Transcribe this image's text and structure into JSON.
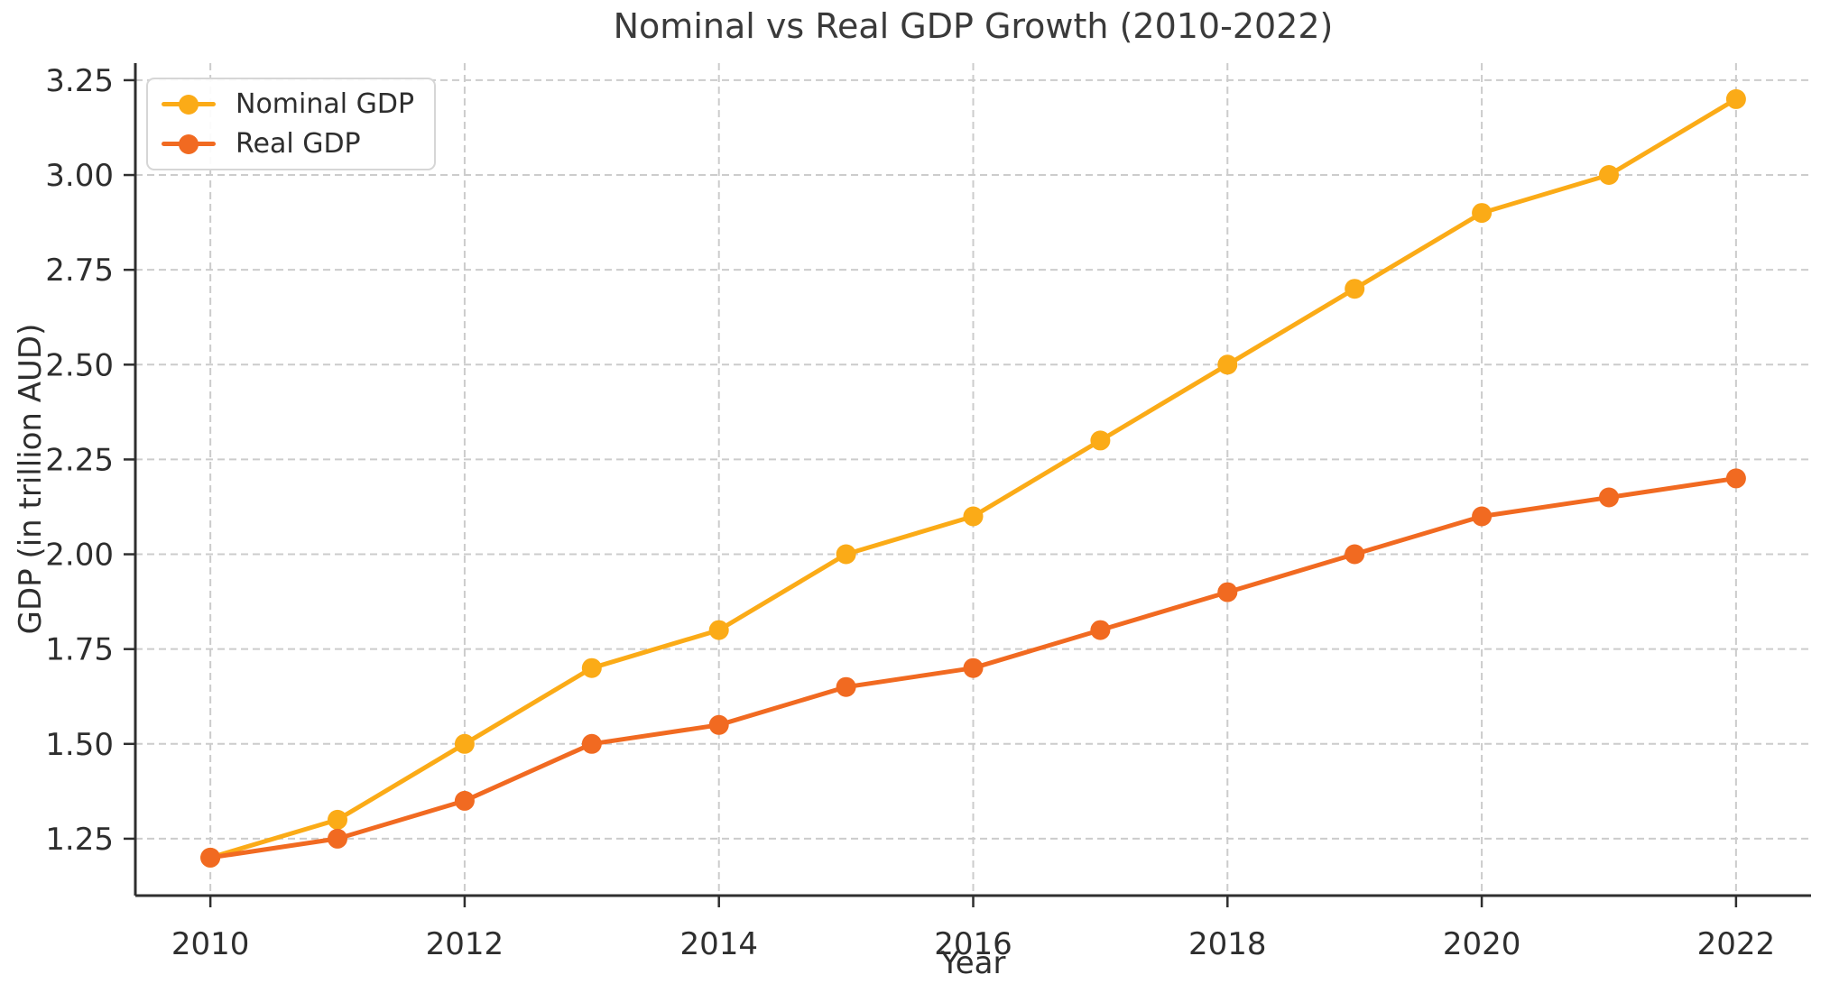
{
  "chart_data": {
    "type": "line",
    "title": "Nominal vs Real GDP Growth (2010-2022)",
    "xlabel": "Year",
    "ylabel": "GDP (in trillion AUD)",
    "x": [
      2010,
      2011,
      2012,
      2013,
      2014,
      2015,
      2016,
      2017,
      2018,
      2019,
      2020,
      2021,
      2022
    ],
    "series": [
      {
        "name": "Nominal GDP",
        "color": "#FBAB17",
        "values": [
          1.2,
          1.3,
          1.5,
          1.7,
          1.8,
          2.0,
          2.1,
          2.3,
          2.5,
          2.7,
          2.9,
          3.0,
          3.2
        ]
      },
      {
        "name": "Real GDP",
        "color": "#F16A21",
        "values": [
          1.2,
          1.25,
          1.35,
          1.5,
          1.55,
          1.65,
          1.7,
          1.8,
          1.9,
          2.0,
          2.1,
          2.15,
          2.2
        ]
      }
    ],
    "xlim": [
      2009.41,
      2022.59
    ],
    "ylim": [
      1.1,
      3.295
    ],
    "xticks": [
      2010,
      2012,
      2014,
      2016,
      2018,
      2020,
      2022
    ],
    "yticks": [
      1.25,
      1.5,
      1.75,
      2.0,
      2.25,
      2.5,
      2.75,
      3.0,
      3.25
    ],
    "ytick_labels": [
      "1.25",
      "1.50",
      "1.75",
      "2.00",
      "2.25",
      "2.50",
      "2.75",
      "3.00",
      "3.25"
    ],
    "grid": {
      "show": true,
      "style": "dashed",
      "color": "#cccccc"
    },
    "legend": {
      "position": "upper-left",
      "entries": [
        "Nominal GDP",
        "Real GDP"
      ]
    },
    "style": {
      "spine_color": "#2f2f2f",
      "tick_label_color": "#2e2e2e",
      "title_color": "#3a3a3a",
      "background": "#ffffff"
    }
  }
}
